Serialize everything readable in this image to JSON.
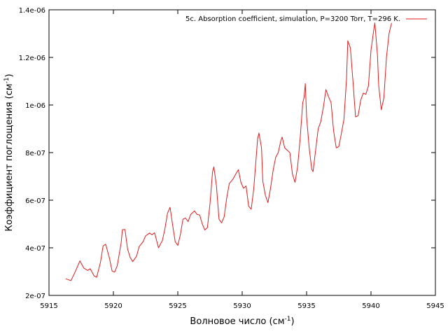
{
  "chart_data": {
    "type": "line",
    "title": "",
    "xlabel": "Волновое число (см",
    "xlabel_sup": "-1",
    "xlabel_end": ")",
    "ylabel": "Коэффициент поглощения (см",
    "ylabel_sup": "-1",
    "ylabel_end": ")",
    "xlim": [
      5915,
      5945
    ],
    "ylim": [
      2e-07,
      1.4e-06
    ],
    "x_ticks": [
      5915,
      5920,
      5925,
      5930,
      5935,
      5940,
      5945
    ],
    "x_tick_labels": [
      "5915",
      "5920",
      "5925",
      "5930",
      "5935",
      "5940",
      "5945"
    ],
    "y_ticks": [
      2e-07,
      4e-07,
      6e-07,
      8e-07,
      1e-06,
      1.2e-06,
      1.4e-06
    ],
    "y_tick_labels": [
      "2e-07",
      "4e-07",
      "6e-07",
      "8e-07",
      "1e-06",
      "1.2e-06",
      "1.4e-06"
    ],
    "grid": false,
    "legend_position": "top-right",
    "series": [
      {
        "name": "5c. Absorption coefficient, simulation, P=3200 Torr, T=296 K.",
        "color": "#e31a1c",
        "points": [
          [
            5916.3,
            2.7e-07
          ],
          [
            5916.7,
            2.62e-07
          ],
          [
            5917.0,
            2.95e-07
          ],
          [
            5917.4,
            3.45e-07
          ],
          [
            5917.7,
            3.15e-07
          ],
          [
            5918.0,
            3.05e-07
          ],
          [
            5918.2,
            3.12e-07
          ],
          [
            5918.5,
            2.82e-07
          ],
          [
            5918.7,
            2.76e-07
          ],
          [
            5919.0,
            3.4e-07
          ],
          [
            5919.2,
            4.08e-07
          ],
          [
            5919.4,
            4.15e-07
          ],
          [
            5919.7,
            3.55e-07
          ],
          [
            5919.9,
            3.02e-07
          ],
          [
            5920.1,
            2.98e-07
          ],
          [
            5920.3,
            3.25e-07
          ],
          [
            5920.6,
            4.2e-07
          ],
          [
            5920.7,
            4.76e-07
          ],
          [
            5920.9,
            4.77e-07
          ],
          [
            5921.1,
            3.95e-07
          ],
          [
            5921.3,
            3.6e-07
          ],
          [
            5921.5,
            3.42e-07
          ],
          [
            5921.8,
            3.65e-07
          ],
          [
            5922.0,
            4.05e-07
          ],
          [
            5922.3,
            4.25e-07
          ],
          [
            5922.5,
            4.5e-07
          ],
          [
            5922.8,
            4.62e-07
          ],
          [
            5923.0,
            4.55e-07
          ],
          [
            5923.2,
            4.63e-07
          ],
          [
            5923.5,
            4e-07
          ],
          [
            5923.8,
            4.3e-07
          ],
          [
            5924.0,
            4.8e-07
          ],
          [
            5924.2,
            5.45e-07
          ],
          [
            5924.4,
            5.7e-07
          ],
          [
            5924.6,
            4.95e-07
          ],
          [
            5924.8,
            4.25e-07
          ],
          [
            5925.0,
            4.1e-07
          ],
          [
            5925.2,
            4.55e-07
          ],
          [
            5925.4,
            5.2e-07
          ],
          [
            5925.6,
            5.25e-07
          ],
          [
            5925.8,
            5.1e-07
          ],
          [
            5926.0,
            5.4e-07
          ],
          [
            5926.3,
            5.55e-07
          ],
          [
            5926.5,
            5.4e-07
          ],
          [
            5926.7,
            5.38e-07
          ],
          [
            5926.9,
            5e-07
          ],
          [
            5927.1,
            4.75e-07
          ],
          [
            5927.3,
            4.85e-07
          ],
          [
            5927.5,
            5.85e-07
          ],
          [
            5927.7,
            7.2e-07
          ],
          [
            5927.8,
            7.4e-07
          ],
          [
            5928.0,
            6.6e-07
          ],
          [
            5928.2,
            5.2e-07
          ],
          [
            5928.4,
            5.05e-07
          ],
          [
            5928.6,
            5.3e-07
          ],
          [
            5928.8,
            6.1e-07
          ],
          [
            5929.0,
            6.7e-07
          ],
          [
            5929.3,
            6.9e-07
          ],
          [
            5929.5,
            7.1e-07
          ],
          [
            5929.7,
            7.28e-07
          ],
          [
            5929.9,
            6.75e-07
          ],
          [
            5930.1,
            6.5e-07
          ],
          [
            5930.3,
            6.6e-07
          ],
          [
            5930.5,
            5.75e-07
          ],
          [
            5930.7,
            5.62e-07
          ],
          [
            5930.9,
            6.5e-07
          ],
          [
            5931.1,
            7.9e-07
          ],
          [
            5931.2,
            8.6e-07
          ],
          [
            5931.3,
            8.82e-07
          ],
          [
            5931.5,
            8.2e-07
          ],
          [
            5931.6,
            6.8e-07
          ],
          [
            5931.8,
            6.2e-07
          ],
          [
            5932.0,
            5.9e-07
          ],
          [
            5932.2,
            6.5e-07
          ],
          [
            5932.4,
            7.25e-07
          ],
          [
            5932.6,
            7.8e-07
          ],
          [
            5932.8,
            8e-07
          ],
          [
            5933.0,
            8.5e-07
          ],
          [
            5933.1,
            8.65e-07
          ],
          [
            5933.3,
            8.2e-07
          ],
          [
            5933.5,
            8.1e-07
          ],
          [
            5933.7,
            8e-07
          ],
          [
            5933.9,
            7.1e-07
          ],
          [
            5934.1,
            6.75e-07
          ],
          [
            5934.3,
            7.4e-07
          ],
          [
            5934.5,
            8.6e-07
          ],
          [
            5934.7,
            1.01e-06
          ],
          [
            5934.8,
            1.03e-06
          ],
          [
            5934.9,
            1.09e-06
          ],
          [
            5935.0,
            9.5e-07
          ],
          [
            5935.2,
            8.2e-07
          ],
          [
            5935.4,
            7.3e-07
          ],
          [
            5935.5,
            7.2e-07
          ],
          [
            5935.7,
            8.1e-07
          ],
          [
            5935.9,
            9e-07
          ],
          [
            5936.1,
            9.3e-07
          ],
          [
            5936.3,
            9.9e-07
          ],
          [
            5936.5,
            1.065e-06
          ],
          [
            5936.7,
            1.035e-06
          ],
          [
            5936.9,
            1.01e-06
          ],
          [
            5937.1,
            8.9e-07
          ],
          [
            5937.3,
            8.2e-07
          ],
          [
            5937.5,
            8.25e-07
          ],
          [
            5937.7,
            8.8e-07
          ],
          [
            5937.9,
            9.4e-07
          ],
          [
            5938.1,
            1.11e-06
          ],
          [
            5938.2,
            1.27e-06
          ],
          [
            5938.4,
            1.24e-06
          ],
          [
            5938.6,
            1.1e-06
          ],
          [
            5938.8,
            9.5e-07
          ],
          [
            5939.0,
            9.55e-07
          ],
          [
            5939.2,
            1.02e-06
          ],
          [
            5939.4,
            1.05e-06
          ],
          [
            5939.6,
            1.045e-06
          ],
          [
            5939.8,
            1.08e-06
          ],
          [
            5940.0,
            1.23e-06
          ],
          [
            5940.2,
            1.31e-06
          ],
          [
            5940.3,
            1.345e-06
          ],
          [
            5940.5,
            1.21e-06
          ],
          [
            5940.6,
            1.08e-06
          ],
          [
            5940.8,
            9.8e-07
          ],
          [
            5941.0,
            1.03e-06
          ],
          [
            5941.2,
            1.2e-06
          ],
          [
            5941.4,
            1.3e-06
          ],
          [
            5941.6,
            1.345e-06
          ]
        ]
      }
    ]
  }
}
